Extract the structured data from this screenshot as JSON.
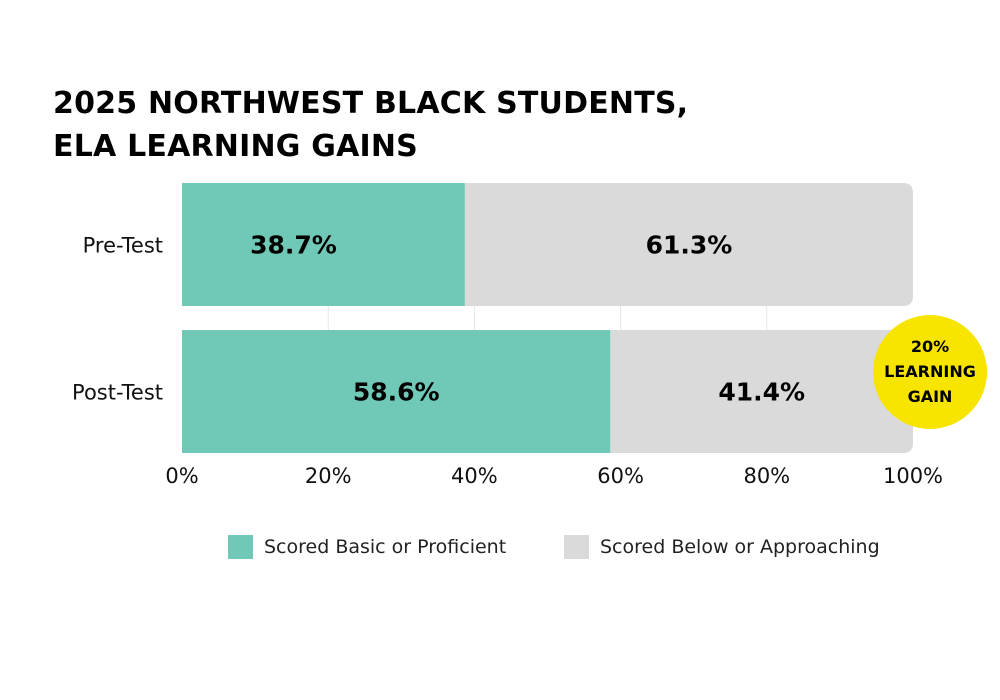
{
  "title_lines": [
    "2025 NORTHWEST BLACK STUDENTS,",
    "ELA LEARNING GAINS"
  ],
  "chart_data": {
    "type": "bar",
    "orientation": "horizontal",
    "stacked": true,
    "categories": [
      "Pre-Test",
      "Post-Test"
    ],
    "series": [
      {
        "name": "Scored Basic or Proficient",
        "values": [
          38.7,
          58.6
        ],
        "labels": [
          "38.7%",
          "58.6%"
        ],
        "color": "#6fc9b6"
      },
      {
        "name": "Scored Below or Approaching",
        "values": [
          61.3,
          41.4
        ],
        "labels": [
          "61.3%",
          "41.4%"
        ],
        "color": "#dadada"
      }
    ],
    "xlim": [
      0,
      100
    ],
    "xticks": [
      0,
      20,
      40,
      60,
      80,
      100
    ],
    "xtick_labels": [
      "0%",
      "20%",
      "40%",
      "60%",
      "80%",
      "100%"
    ],
    "grid": true,
    "legend_position": "bottom",
    "annotation": {
      "lines": [
        "20%",
        "LEARNING",
        "GAIN"
      ],
      "color": "#f7e500",
      "attached_to": "Post-Test"
    }
  },
  "colors": {
    "proficient": "#6fc9b6",
    "below": "#dadada",
    "badge": "#f7e500",
    "text": "#000000"
  }
}
